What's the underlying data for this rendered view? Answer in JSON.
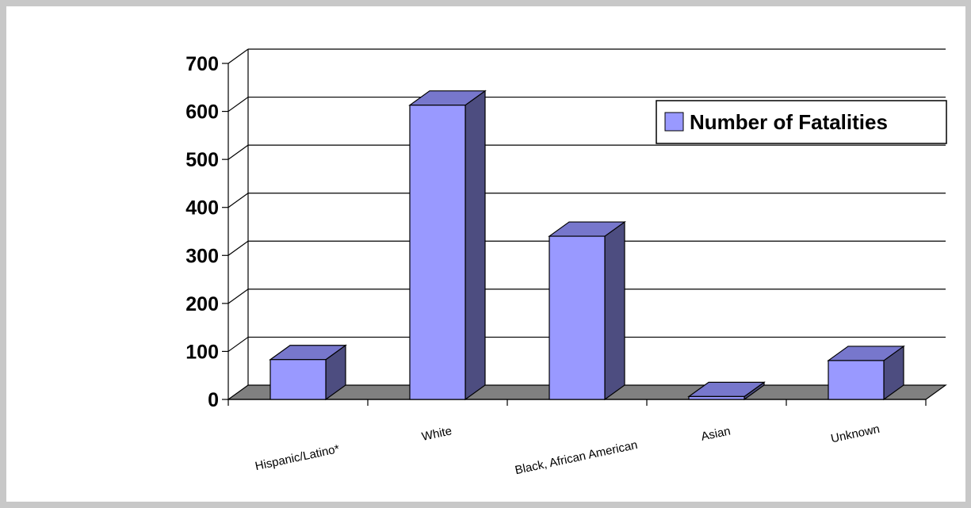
{
  "chart_data": {
    "type": "bar",
    "categories": [
      "Hispanic/Latino*",
      "White",
      "Black, African American",
      "Asian",
      "Unknown"
    ],
    "series": [
      {
        "name": "Number of Fatalities",
        "values": [
          83,
          613,
          340,
          6,
          81
        ]
      }
    ],
    "ylim": [
      0,
      700
    ],
    "yticks": [
      "0",
      "100",
      "200",
      "300",
      "400",
      "500",
      "600",
      "700"
    ],
    "grid": true,
    "legend_position": "top-right",
    "colors": {
      "bar_front": "#9999ff",
      "bar_top": "#7777cc",
      "bar_side": "#4d4d80",
      "floor": "#808080"
    }
  }
}
